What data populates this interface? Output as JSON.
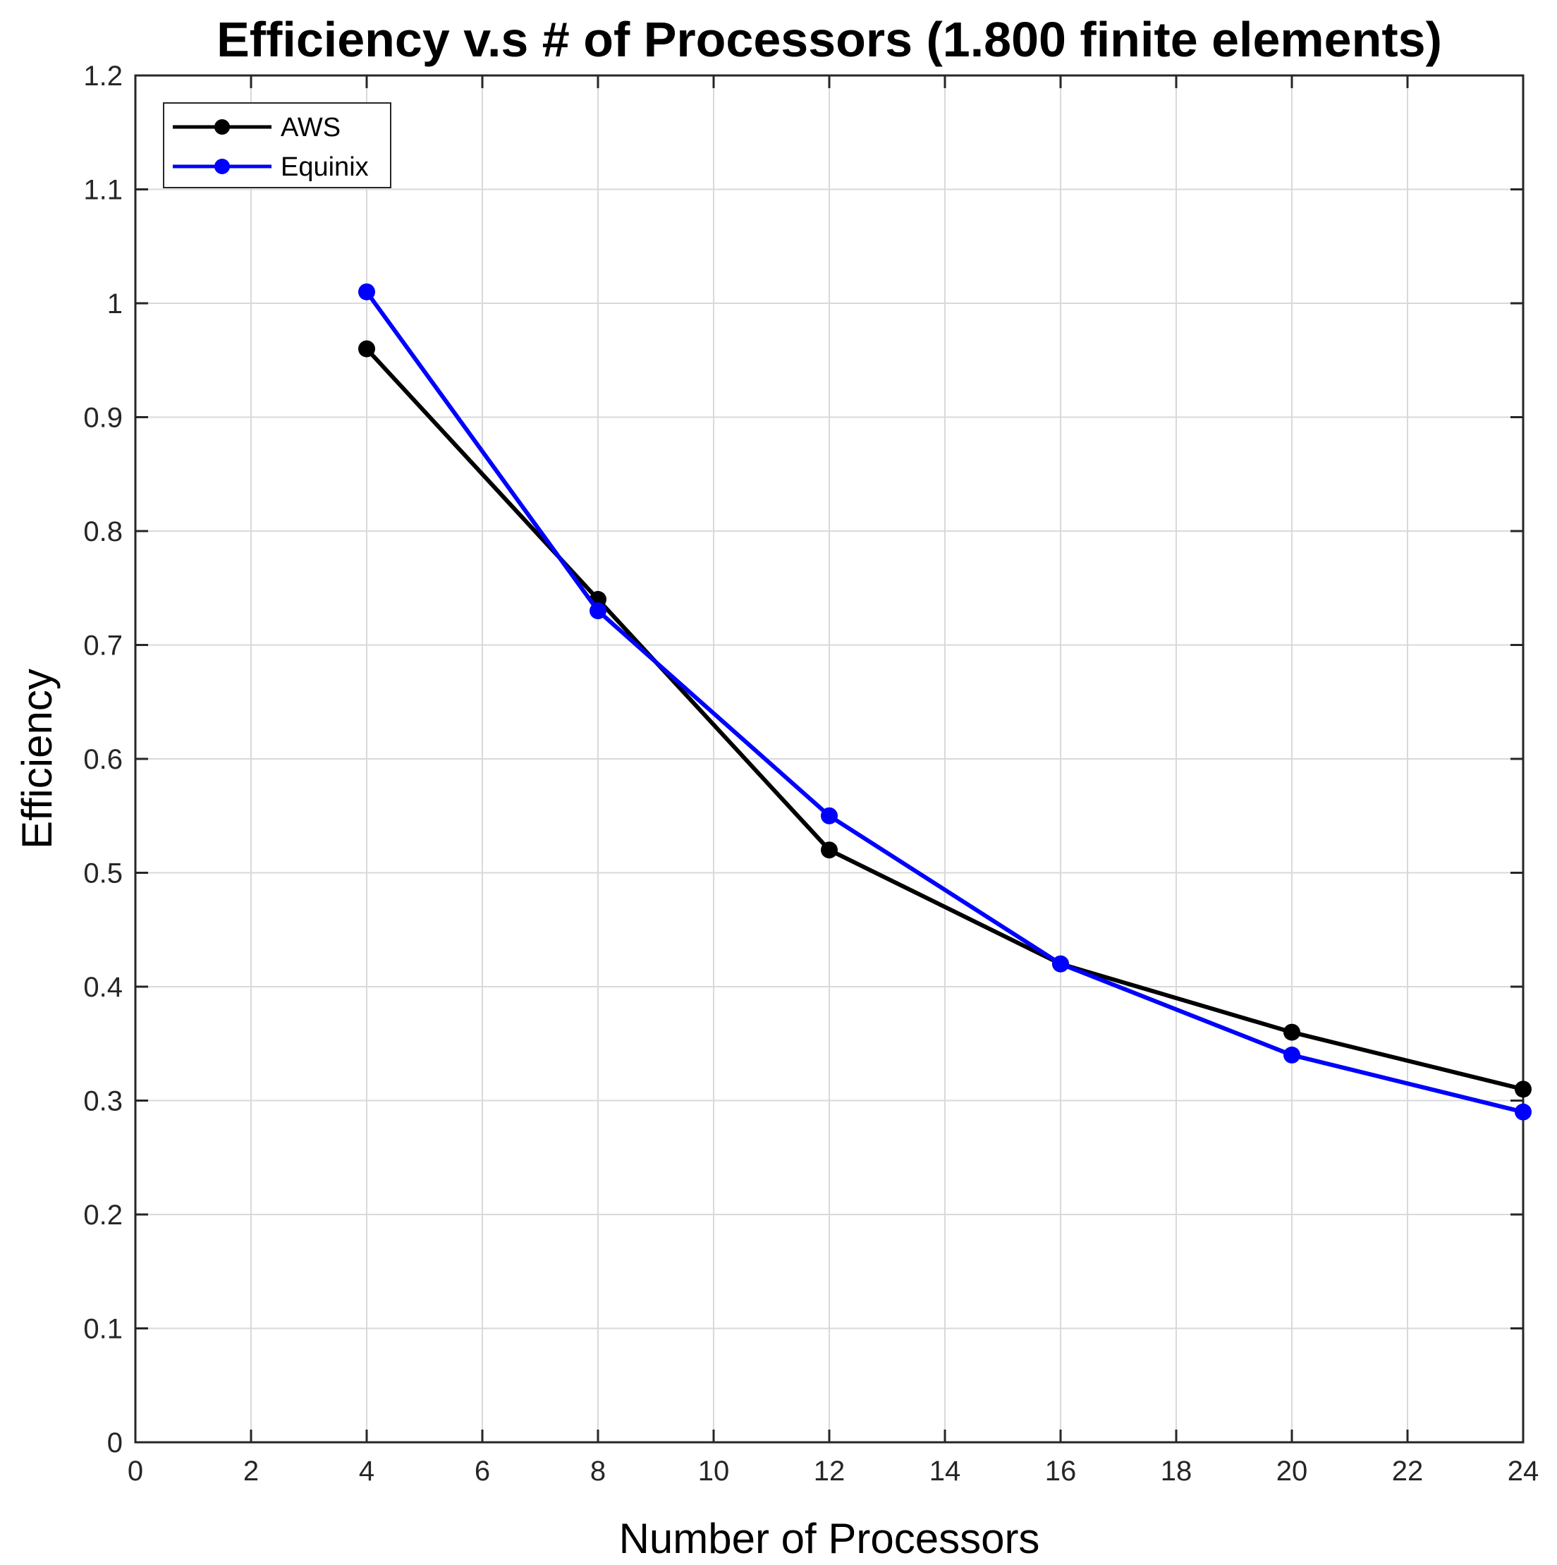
{
  "chart_data": {
    "type": "line",
    "title": "Efficiency v.s # of Processors (1.800 finite elements)",
    "xlabel": "Number of Processors",
    "ylabel": "Efficiency",
    "xlim": [
      0,
      24
    ],
    "ylim": [
      0,
      1.2
    ],
    "xticks": [
      0,
      2,
      4,
      6,
      8,
      10,
      12,
      14,
      16,
      18,
      20,
      22,
      24
    ],
    "xtick_labels": [
      "0",
      "2",
      "4",
      "6",
      "8",
      "10",
      "12",
      "14",
      "16",
      "18",
      "20",
      "22",
      "24"
    ],
    "yticks": [
      0,
      0.1,
      0.2,
      0.3,
      0.4,
      0.5,
      0.6,
      0.7,
      0.8,
      0.9,
      1.0,
      1.1,
      1.2
    ],
    "ytick_labels": [
      "0",
      "0.1",
      "0.2",
      "0.3",
      "0.4",
      "0.5",
      "0.6",
      "0.7",
      "0.8",
      "0.9",
      "1",
      "1.1",
      "1.2"
    ],
    "grid": true,
    "legend_position": "top-left",
    "x": [
      4,
      8,
      12,
      16,
      20,
      24
    ],
    "series": [
      {
        "name": "AWS",
        "color": "#000000",
        "values": [
          0.96,
          0.74,
          0.52,
          0.42,
          0.36,
          0.31
        ]
      },
      {
        "name": "Equinix",
        "color": "#0000ff",
        "values": [
          1.01,
          0.73,
          0.55,
          0.42,
          0.34,
          0.29
        ]
      }
    ]
  }
}
